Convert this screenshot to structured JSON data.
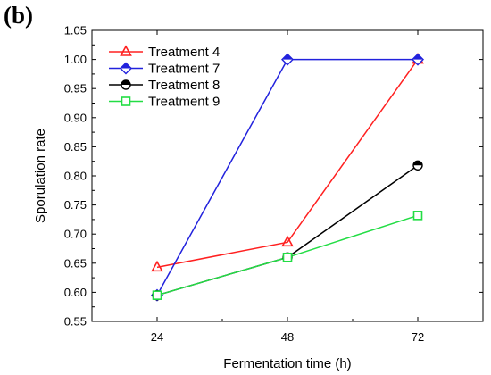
{
  "panel_label": "(b)",
  "chart_data": {
    "type": "line",
    "title": "",
    "xlabel": "Fermentation time (h)",
    "ylabel": "Sporulation rate",
    "x": [
      24,
      48,
      72
    ],
    "xlim": [
      12,
      84
    ],
    "ylim": [
      0.55,
      1.05
    ],
    "xticks": [
      "24",
      "48",
      "72"
    ],
    "yticks": [
      "0.55",
      "0.60",
      "0.65",
      "0.70",
      "0.75",
      "0.80",
      "0.85",
      "0.90",
      "0.95",
      "1.00",
      "1.05"
    ],
    "grid": false,
    "legend_position": "top-left",
    "series": [
      {
        "name": "Treatment 4",
        "values": [
          0.643,
          0.686,
          1.0
        ],
        "color": "#ff2020",
        "marker": "triangle"
      },
      {
        "name": "Treatment 7",
        "values": [
          0.595,
          1.0,
          1.0
        ],
        "color": "#2222dd",
        "marker": "diamond"
      },
      {
        "name": "Treatment 8",
        "values": [
          0.595,
          0.66,
          0.818
        ],
        "color": "#000000",
        "marker": "half-circle"
      },
      {
        "name": "Treatment 9",
        "values": [
          0.595,
          0.66,
          0.732
        ],
        "color": "#22dd44",
        "marker": "square"
      }
    ]
  }
}
